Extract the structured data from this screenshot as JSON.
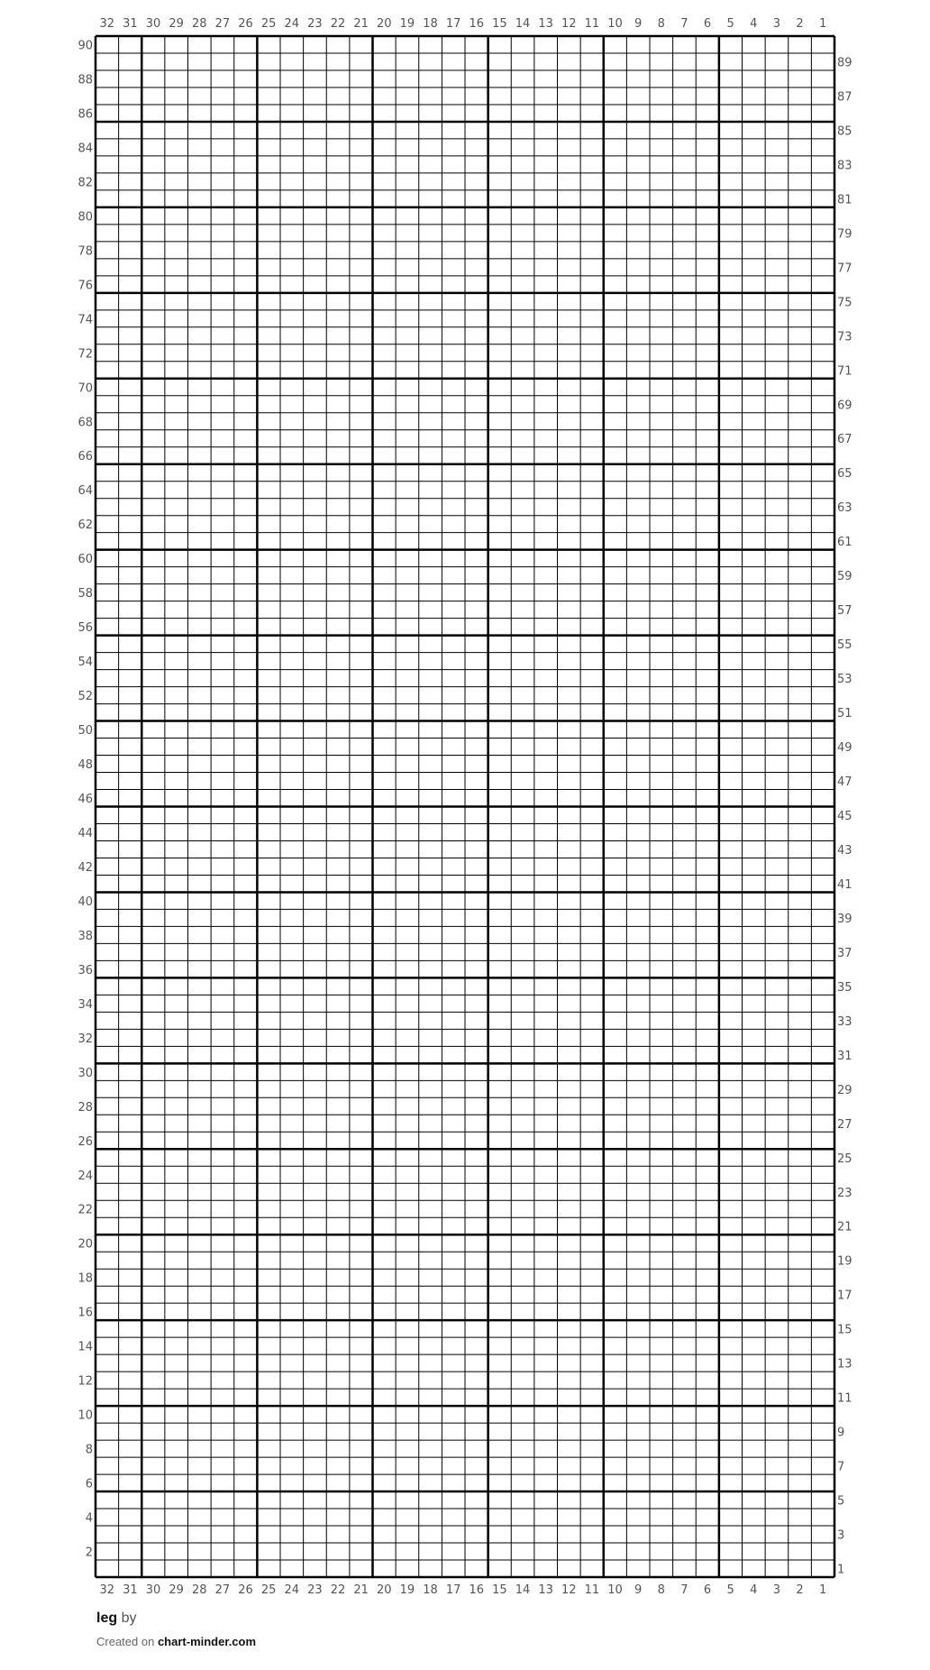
{
  "chart": {
    "columns": 32,
    "rows": 90,
    "major_every": 5,
    "line_color": "#000000",
    "label_color": "#555555"
  },
  "footer": {
    "title": "leg",
    "by": "by",
    "created_on": "Created on",
    "site": "chart-minder.com"
  }
}
